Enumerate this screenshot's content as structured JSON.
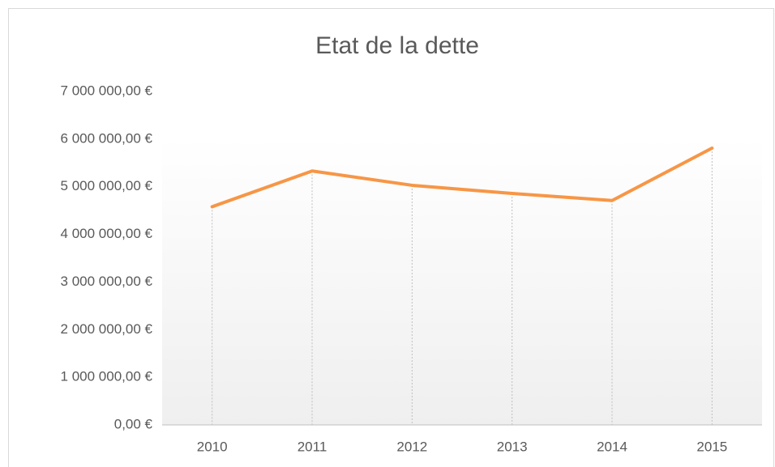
{
  "chart_data": {
    "type": "line",
    "title": "Etat de la dette",
    "categories": [
      "2010",
      "2011",
      "2012",
      "2013",
      "2014",
      "2015"
    ],
    "series": [
      {
        "name": "Etat de la dette",
        "color": "#f79646",
        "values": [
          4580000,
          5330000,
          5030000,
          4860000,
          4710000,
          5810000
        ]
      }
    ],
    "ylim": [
      0,
      7000000
    ],
    "yticks": [
      {
        "value": 0,
        "label": "0,00 €"
      },
      {
        "value": 1000000,
        "label": "1 000 000,00 €"
      },
      {
        "value": 2000000,
        "label": "2 000 000,00 €"
      },
      {
        "value": 3000000,
        "label": "3 000 000,00 €"
      },
      {
        "value": 4000000,
        "label": "4 000 000,00 €"
      },
      {
        "value": 5000000,
        "label": "5 000 000,00 €"
      },
      {
        "value": 6000000,
        "label": "6 000 000,00 €"
      },
      {
        "value": 7000000,
        "label": "7 000 000,00 €"
      }
    ],
    "grid": false,
    "drop_lines": true
  }
}
